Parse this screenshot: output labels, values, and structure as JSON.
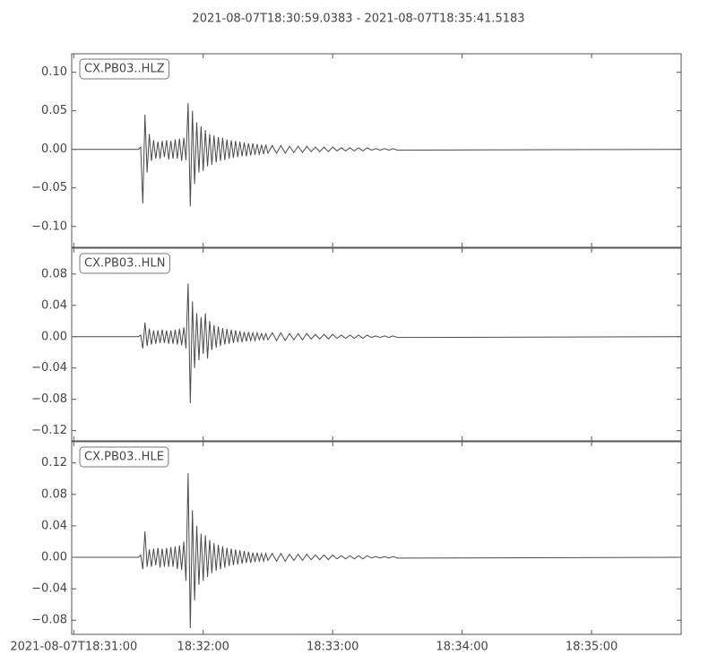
{
  "chart_data": [
    {
      "type": "line",
      "suptitle": "2021-08-07T18:30:59.0383  -  2021-08-07T18:35:41.5183",
      "title": "CX.PB03..HLZ",
      "color": "#4a4a4a",
      "ylim": [
        -0.127,
        0.124
      ],
      "yticks": [
        {
          "value": 0.1,
          "label": "0.10"
        },
        {
          "value": 0.05,
          "label": "0.05"
        },
        {
          "value": 0,
          "label": "0.00"
        },
        {
          "value": -0.05,
          "label": "−0.05"
        },
        {
          "value": -0.1,
          "label": "−0.10"
        }
      ],
      "x": [
        "18:31:00",
        "18:31:30",
        "18:31:31",
        "18:31:32",
        "18:31:33",
        "18:31:34",
        "18:31:35",
        "18:31:36",
        "18:31:37",
        "18:31:38",
        "18:31:39",
        "18:31:40",
        "18:31:41",
        "18:31:42",
        "18:31:43",
        "18:31:44",
        "18:31:45",
        "18:31:46",
        "18:31:47",
        "18:31:48",
        "18:31:49",
        "18:31:50",
        "18:31:51",
        "18:31:52",
        "18:31:53",
        "18:31:54",
        "18:31:55",
        "18:31:56",
        "18:31:57",
        "18:31:58",
        "18:31:59",
        "18:32:00",
        "18:32:01",
        "18:32:02",
        "18:32:03",
        "18:32:04",
        "18:32:05",
        "18:32:06",
        "18:32:07",
        "18:32:08",
        "18:32:09",
        "18:32:10",
        "18:32:11",
        "18:32:12",
        "18:32:13",
        "18:32:14",
        "18:32:15",
        "18:32:16",
        "18:32:17",
        "18:32:18",
        "18:32:19",
        "18:32:20",
        "18:32:21",
        "18:32:22",
        "18:32:23",
        "18:32:24",
        "18:32:25",
        "18:32:26",
        "18:32:27",
        "18:32:28",
        "18:32:29",
        "18:32:30",
        "18:32:32",
        "18:32:34",
        "18:32:36",
        "18:32:38",
        "18:32:40",
        "18:32:42",
        "18:32:44",
        "18:32:46",
        "18:32:48",
        "18:32:50",
        "18:32:52",
        "18:32:54",
        "18:32:56",
        "18:32:58",
        "18:33:00",
        "18:33:02",
        "18:33:04",
        "18:33:06",
        "18:33:08",
        "18:33:10",
        "18:33:12",
        "18:33:14",
        "18:33:16",
        "18:33:18",
        "18:33:20",
        "18:33:22",
        "18:33:24",
        "18:33:26",
        "18:33:28",
        "18:33:30",
        "18:35:41"
      ],
      "values": [
        0,
        0,
        0.003,
        -0.07,
        0.045,
        -0.03,
        0.02,
        -0.015,
        0.012,
        -0.012,
        0.01,
        -0.012,
        0.011,
        -0.01,
        0.012,
        -0.013,
        0.011,
        -0.012,
        0.013,
        -0.012,
        0.014,
        -0.015,
        0.015,
        -0.014,
        0.06,
        -0.074,
        0.05,
        -0.045,
        0.035,
        -0.03,
        0.03,
        -0.028,
        0.025,
        -0.022,
        0.02,
        -0.02,
        0.018,
        -0.017,
        0.016,
        -0.015,
        0.015,
        -0.014,
        0.013,
        -0.012,
        0.012,
        -0.011,
        0.011,
        -0.01,
        0.01,
        -0.009,
        0.009,
        -0.009,
        0.008,
        -0.008,
        0.008,
        -0.007,
        0.007,
        -0.007,
        0.006,
        -0.006,
        0.006,
        -0.005,
        0.005,
        -0.005,
        0.005,
        -0.005,
        0.004,
        -0.004,
        0.004,
        -0.004,
        0.004,
        -0.003,
        0.003,
        -0.003,
        0.003,
        -0.003,
        0.003,
        -0.002,
        0.002,
        -0.002,
        0.002,
        -0.002,
        0.002,
        -0.002,
        0.002,
        -0.001,
        0.001,
        -0.001,
        0.001,
        -0.001,
        0.001,
        -0.001,
        0
      ]
    },
    {
      "type": "line",
      "title": "CX.PB03..HLN",
      "color": "#4a4a4a",
      "ylim": [
        -0.133,
        0.113
      ],
      "yticks": [
        {
          "value": 0.08,
          "label": "0.08"
        },
        {
          "value": 0.04,
          "label": "0.04"
        },
        {
          "value": 0,
          "label": "0.00"
        },
        {
          "value": -0.04,
          "label": "−0.04"
        },
        {
          "value": -0.08,
          "label": "−0.08"
        },
        {
          "value": -0.12,
          "label": "−0.12"
        }
      ],
      "x": [
        "18:31:00",
        "18:31:30",
        "18:31:31",
        "18:31:32",
        "18:31:33",
        "18:31:34",
        "18:31:35",
        "18:31:36",
        "18:31:37",
        "18:31:38",
        "18:31:39",
        "18:31:40",
        "18:31:41",
        "18:31:42",
        "18:31:43",
        "18:31:44",
        "18:31:45",
        "18:31:46",
        "18:31:47",
        "18:31:48",
        "18:31:49",
        "18:31:50",
        "18:31:51",
        "18:31:52",
        "18:31:53",
        "18:31:54",
        "18:31:55",
        "18:31:56",
        "18:31:57",
        "18:31:58",
        "18:31:59",
        "18:32:00",
        "18:32:01",
        "18:32:02",
        "18:32:03",
        "18:32:04",
        "18:32:05",
        "18:32:06",
        "18:32:07",
        "18:32:08",
        "18:32:09",
        "18:32:10",
        "18:32:11",
        "18:32:12",
        "18:32:13",
        "18:32:14",
        "18:32:15",
        "18:32:16",
        "18:32:17",
        "18:32:18",
        "18:32:19",
        "18:32:20",
        "18:32:21",
        "18:32:22",
        "18:32:23",
        "18:32:24",
        "18:32:25",
        "18:32:26",
        "18:32:27",
        "18:32:28",
        "18:32:29",
        "18:32:30",
        "18:32:32",
        "18:32:34",
        "18:32:36",
        "18:32:38",
        "18:32:40",
        "18:32:42",
        "18:32:44",
        "18:32:46",
        "18:32:48",
        "18:32:50",
        "18:32:52",
        "18:32:54",
        "18:32:56",
        "18:32:58",
        "18:33:00",
        "18:33:02",
        "18:33:04",
        "18:33:06",
        "18:33:08",
        "18:33:10",
        "18:33:12",
        "18:33:14",
        "18:33:16",
        "18:33:18",
        "18:33:20",
        "18:33:22",
        "18:33:24",
        "18:33:26",
        "18:33:28",
        "18:33:30",
        "18:35:41"
      ],
      "values": [
        0,
        0,
        0.002,
        -0.015,
        0.018,
        -0.012,
        0.01,
        -0.01,
        0.008,
        -0.009,
        0.008,
        -0.008,
        0.009,
        -0.008,
        0.008,
        -0.009,
        0.008,
        -0.009,
        0.009,
        -0.01,
        0.01,
        -0.011,
        0.012,
        -0.015,
        0.068,
        -0.085,
        0.045,
        -0.04,
        0.03,
        -0.03,
        0.025,
        -0.022,
        0.03,
        -0.028,
        0.02,
        -0.017,
        0.015,
        -0.014,
        0.013,
        -0.012,
        0.011,
        -0.01,
        0.01,
        -0.009,
        0.009,
        -0.008,
        0.008,
        -0.007,
        0.007,
        -0.007,
        0.006,
        -0.006,
        0.006,
        -0.005,
        0.005,
        -0.005,
        0.005,
        -0.004,
        0.004,
        -0.004,
        0.004,
        -0.004,
        0.005,
        -0.005,
        0.005,
        -0.005,
        0.004,
        -0.004,
        0.004,
        -0.004,
        0.004,
        -0.003,
        0.003,
        -0.003,
        0.003,
        -0.003,
        0.003,
        -0.002,
        0.002,
        -0.002,
        0.002,
        -0.002,
        0.002,
        -0.002,
        0.002,
        -0.001,
        0.001,
        -0.001,
        0.001,
        -0.001,
        0.001,
        -0.001,
        0
      ]
    },
    {
      "type": "line",
      "title": "CX.PB03..HLE",
      "color": "#4a4a4a",
      "ylim": [
        -0.098,
        0.147
      ],
      "yticks": [
        {
          "value": 0.12,
          "label": "0.12"
        },
        {
          "value": 0.08,
          "label": "0.08"
        },
        {
          "value": 0.04,
          "label": "0.04"
        },
        {
          "value": 0,
          "label": "0.00"
        },
        {
          "value": -0.04,
          "label": "−0.04"
        },
        {
          "value": -0.08,
          "label": "−0.08"
        }
      ],
      "xlim": [
        "18:30:59.0383",
        "18:35:41.5183"
      ],
      "xticks": [
        {
          "value": "18:31:00",
          "label": "2021-08-07T18:31:00"
        },
        "18:32:00",
        "18:33:00",
        "18:34:00",
        "18:35:00"
      ],
      "x": [
        "18:31:00",
        "18:31:30",
        "18:31:31",
        "18:31:32",
        "18:31:33",
        "18:31:34",
        "18:31:35",
        "18:31:36",
        "18:31:37",
        "18:31:38",
        "18:31:39",
        "18:31:40",
        "18:31:41",
        "18:31:42",
        "18:31:43",
        "18:31:44",
        "18:31:45",
        "18:31:46",
        "18:31:47",
        "18:31:48",
        "18:31:49",
        "18:31:50",
        "18:31:51",
        "18:31:52",
        "18:31:53",
        "18:31:54",
        "18:31:55",
        "18:31:56",
        "18:31:57",
        "18:31:58",
        "18:31:59",
        "18:32:00",
        "18:32:01",
        "18:32:02",
        "18:32:03",
        "18:32:04",
        "18:32:05",
        "18:32:06",
        "18:32:07",
        "18:32:08",
        "18:32:09",
        "18:32:10",
        "18:32:11",
        "18:32:12",
        "18:32:13",
        "18:32:14",
        "18:32:15",
        "18:32:16",
        "18:32:17",
        "18:32:18",
        "18:32:19",
        "18:32:20",
        "18:32:21",
        "18:32:22",
        "18:32:23",
        "18:32:24",
        "18:32:25",
        "18:32:26",
        "18:32:27",
        "18:32:28",
        "18:32:29",
        "18:32:30",
        "18:32:32",
        "18:32:34",
        "18:32:36",
        "18:32:38",
        "18:32:40",
        "18:32:42",
        "18:32:44",
        "18:32:46",
        "18:32:48",
        "18:32:50",
        "18:32:52",
        "18:32:54",
        "18:32:56",
        "18:32:58",
        "18:33:00",
        "18:33:02",
        "18:33:04",
        "18:33:06",
        "18:33:08",
        "18:33:10",
        "18:33:12",
        "18:33:14",
        "18:33:16",
        "18:33:18",
        "18:33:20",
        "18:33:22",
        "18:33:24",
        "18:33:26",
        "18:33:28",
        "18:33:30",
        "18:35:41"
      ],
      "values": [
        0,
        0,
        0.003,
        -0.015,
        0.033,
        -0.012,
        0.01,
        -0.012,
        0.011,
        -0.01,
        0.012,
        -0.013,
        0.011,
        -0.012,
        0.012,
        -0.012,
        0.013,
        -0.012,
        0.014,
        -0.015,
        0.015,
        -0.016,
        0.02,
        -0.03,
        0.107,
        -0.09,
        0.06,
        -0.055,
        0.04,
        -0.035,
        0.03,
        -0.03,
        0.028,
        -0.025,
        0.022,
        -0.02,
        0.018,
        -0.017,
        0.016,
        -0.015,
        0.014,
        -0.013,
        0.012,
        -0.011,
        0.011,
        -0.01,
        0.01,
        -0.009,
        0.009,
        -0.008,
        0.008,
        -0.007,
        0.007,
        -0.007,
        0.006,
        -0.006,
        0.006,
        -0.005,
        0.005,
        -0.005,
        0.005,
        -0.004,
        0.005,
        -0.005,
        0.005,
        -0.005,
        0.004,
        -0.004,
        0.004,
        -0.004,
        0.004,
        -0.003,
        0.003,
        -0.003,
        0.003,
        -0.003,
        0.003,
        -0.002,
        0.002,
        -0.002,
        0.002,
        -0.002,
        0.002,
        -0.002,
        0.002,
        -0.001,
        0.001,
        -0.001,
        0.001,
        -0.001,
        0.001,
        -0.001,
        0
      ]
    }
  ]
}
